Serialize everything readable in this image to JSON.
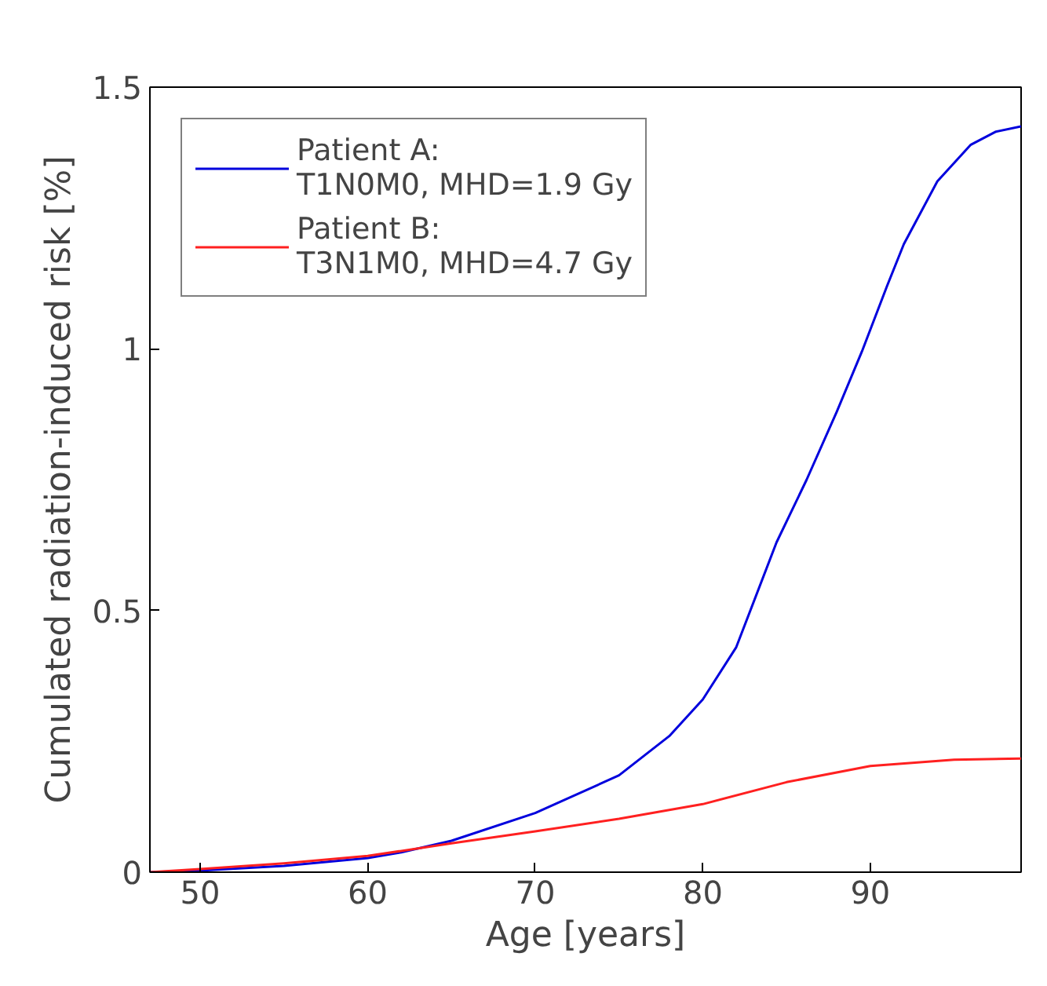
{
  "chart_data": {
    "type": "line",
    "xlabel": "Age [years]",
    "ylabel": "Cumulated radiation-induced risk [%]",
    "xlim": [
      47,
      99
    ],
    "ylim": [
      0,
      1.5
    ],
    "xticks": [
      50,
      60,
      70,
      80,
      90
    ],
    "yticks": [
      0,
      0.5,
      1,
      1.5
    ],
    "grid": false,
    "legend": "top left",
    "marker": "none",
    "line_style": "solid",
    "series": [
      {
        "name": "Patient A:\nT1N0M0, MHD=1.9 Gy",
        "color": "#0000dd",
        "x": [
          47,
          50,
          55,
          60,
          62,
          65,
          70,
          75,
          78,
          80,
          82,
          84.4,
          86.2,
          88,
          89.5,
          91,
          92,
          94,
          96,
          97.5,
          99
        ],
        "values": [
          0,
          0.003,
          0.012,
          0.027,
          0.038,
          0.06,
          0.113,
          0.185,
          0.26,
          0.33,
          0.43,
          0.63,
          0.75,
          0.88,
          0.995,
          1.12,
          1.2,
          1.32,
          1.39,
          1.415,
          1.425
        ]
      },
      {
        "name": "Patient B:\nT3N1M0, MHD=4.7 Gy",
        "color": "#ff2020",
        "x": [
          47,
          50,
          55,
          60,
          65,
          70,
          75,
          80,
          85,
          90,
          95,
          99
        ],
        "values": [
          0,
          0.006,
          0.017,
          0.031,
          0.055,
          0.078,
          0.102,
          0.13,
          0.172,
          0.203,
          0.215,
          0.217
        ]
      }
    ]
  }
}
